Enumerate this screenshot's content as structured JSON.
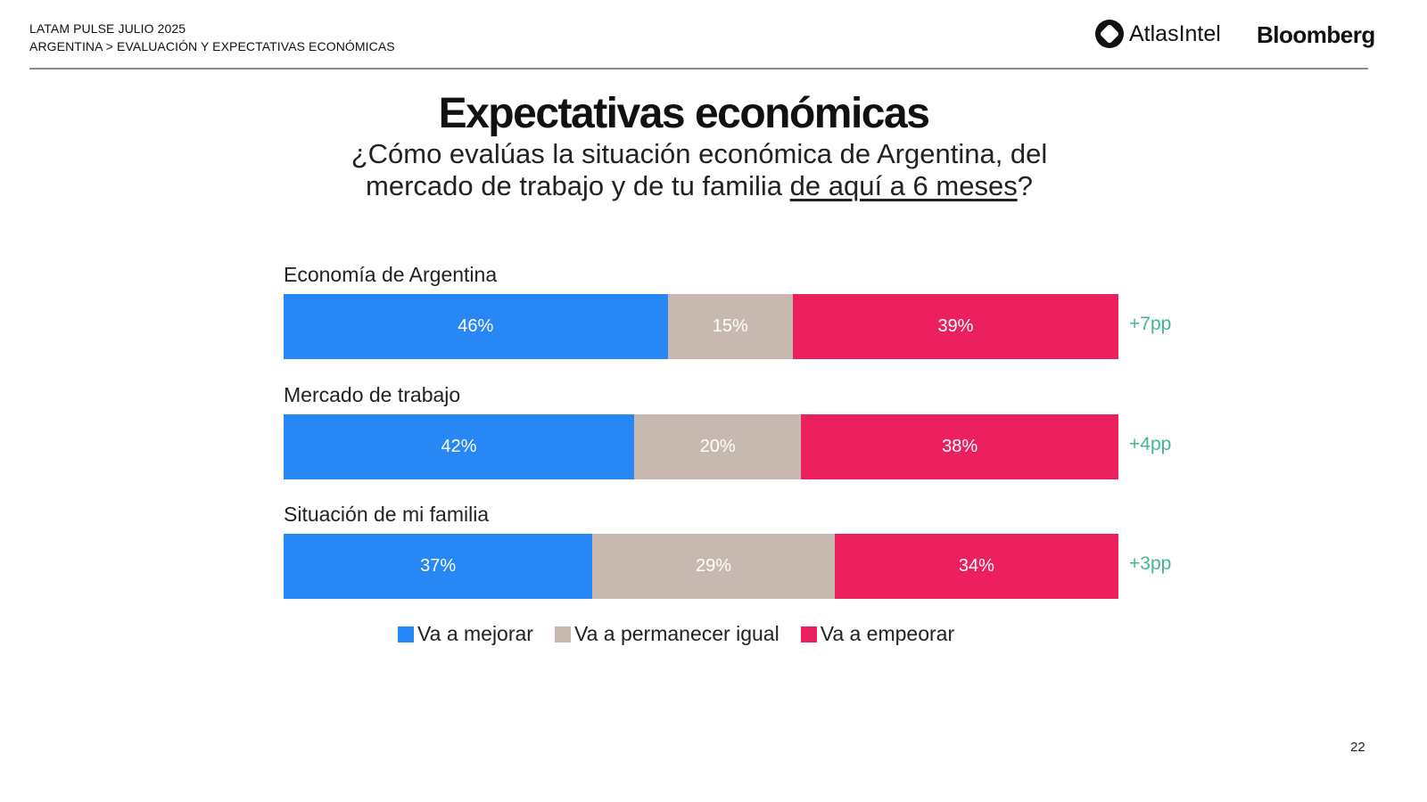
{
  "header": {
    "line1": "LATAM PULSE JULIO 2025",
    "line2": "ARGENTINA > EVALUACIÓN Y EXPECTATIVAS ECONÓMICAS",
    "logo_atlas": "AtlasIntel",
    "logo_bloomberg": "Bloomberg"
  },
  "title": "Expectativas económicas",
  "subtitle": {
    "line1": "¿Cómo evalúas la situación económica de Argentina, del",
    "line2_pre": "mercado de trabajo y de tu familia ",
    "line2_underlined": "de aquí a 6 meses",
    "line2_post": "?"
  },
  "page_number": "22",
  "colors": {
    "mejorar": "#2787f5",
    "igual": "#c7b9b0",
    "empeorar": "#ec1f5f",
    "delta": "#3fb88c"
  },
  "chart_data": {
    "type": "bar",
    "orientation": "horizontal-stacked-100",
    "title": "Expectativas económicas",
    "categories": [
      "Economía de Argentina",
      "Mercado de trabajo",
      "Situación de mi familia"
    ],
    "series": [
      {
        "name": "Va a mejorar",
        "values": [
          46,
          42,
          37
        ],
        "labels": [
          "46%",
          "42%",
          "37%"
        ]
      },
      {
        "name": "Va a permanecer igual",
        "values": [
          15,
          20,
          29
        ],
        "labels": [
          "15%",
          "20%",
          "29%"
        ]
      },
      {
        "name": "Va a empeorar",
        "values": [
          39,
          38,
          34
        ],
        "labels": [
          "39%",
          "38%",
          "34%"
        ]
      }
    ],
    "annotations": [
      "+7pp",
      "+4pp",
      "+3pp"
    ],
    "legend": [
      "Va a mejorar",
      "Va a permanecer igual",
      "Va a empeorar"
    ],
    "legend_position": "bottom",
    "grid": false,
    "xlim": [
      0,
      100
    ]
  }
}
